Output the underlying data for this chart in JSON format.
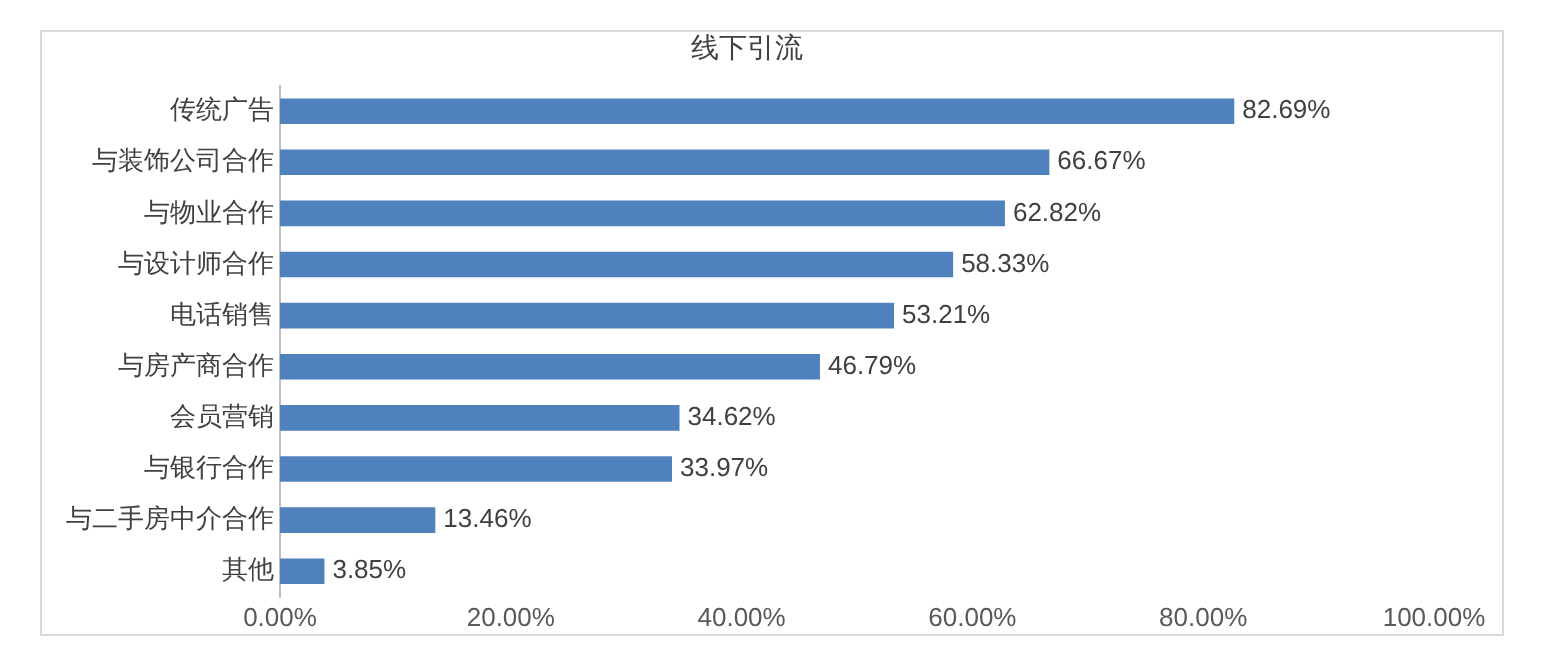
{
  "chart_data": {
    "type": "bar",
    "orientation": "horizontal",
    "title": "线下引流",
    "categories": [
      "传统广告",
      "与装饰公司合作",
      "与物业合作",
      "与设计师合作",
      "电话销售",
      "与房产商合作",
      "会员营销",
      "与银行合作",
      "与二手房中介合作",
      "其他"
    ],
    "values": [
      82.69,
      66.67,
      62.82,
      58.33,
      53.21,
      46.79,
      34.62,
      33.97,
      13.46,
      3.85
    ],
    "value_labels": [
      "82.69%",
      "66.67%",
      "62.82%",
      "58.33%",
      "53.21%",
      "46.79%",
      "34.62%",
      "33.97%",
      "13.46%",
      "3.85%"
    ],
    "color": "#4f81bd",
    "xlim": [
      0,
      100
    ],
    "xticks": [
      {
        "value": 0,
        "label": "0.00%"
      },
      {
        "value": 20,
        "label": "20.00%"
      },
      {
        "value": 40,
        "label": "40.00%"
      },
      {
        "value": 60,
        "label": "60.00%"
      },
      {
        "value": 80,
        "label": "80.00%"
      },
      {
        "value": 100,
        "label": "100.00%"
      }
    ],
    "grid": false
  }
}
